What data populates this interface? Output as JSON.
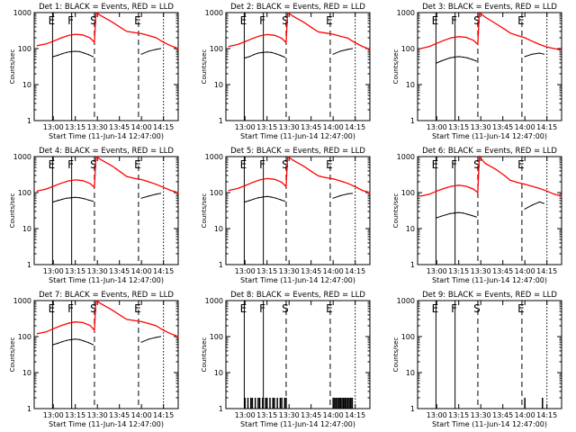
{
  "colors": {
    "events": "#000000",
    "lld": "#ff0000",
    "background": "#ffffff",
    "axis": "#000000"
  },
  "common": {
    "ylabel": "Counts/sec",
    "xlabel": "Start Time (11-Jun-14 12:47:00)",
    "xticks": [
      "13:00",
      "13:15",
      "13:30",
      "13:45",
      "14:00",
      "14:15"
    ],
    "yticks": [
      "1",
      "10",
      "100",
      "1000"
    ],
    "ylim": [
      1,
      1000
    ],
    "y_scale": "log",
    "x_range": [
      "12:47:00",
      "14:25:00"
    ]
  },
  "chart_data": [
    {
      "type": "line",
      "title": "Det 1: BLACK = Events, RED = LLD",
      "markers": [
        {
          "label": "E",
          "time": "12:59:30",
          "style": "solid"
        },
        {
          "label": "F",
          "time": "13:12:30",
          "style": "solid"
        },
        {
          "label": "S",
          "time": "13:28:00",
          "style": "dashed"
        },
        {
          "label": "E",
          "time": "13:58:00",
          "style": "dashed"
        },
        {
          "label": "",
          "time": "14:15:00",
          "style": "dotted"
        }
      ],
      "series": [
        {
          "name": "BLACK = Events",
          "color": "#000000",
          "x": [
            "13:00",
            "13:03",
            "13:06",
            "13:09",
            "13:12",
            "13:15",
            "13:18",
            "13:21",
            "13:24",
            "13:27",
            "13:28",
            "13:31",
            "13:37",
            "13:42",
            "13:48",
            "13:54",
            "13:58",
            "14:00",
            "14:05",
            "14:10",
            "14:13"
          ],
          "y": [
            60,
            65,
            72,
            78,
            82,
            84,
            82,
            75,
            68,
            60,
            null,
            null,
            null,
            null,
            null,
            null,
            null,
            70,
            85,
            95,
            100
          ]
        },
        {
          "name": "RED = LLD",
          "color": "#ff0000",
          "x": [
            "12:49",
            "12:55",
            "13:00",
            "13:05",
            "13:10",
            "13:15",
            "13:20",
            "13:25",
            "13:28",
            "13:29",
            "13:33",
            "13:40",
            "13:46",
            "13:50",
            "13:55",
            "14:00",
            "14:05",
            "14:10",
            "14:15",
            "14:20",
            "14:25"
          ],
          "y": [
            120,
            135,
            160,
            195,
            230,
            250,
            240,
            200,
            150,
            1000,
            800,
            550,
            380,
            300,
            280,
            260,
            230,
            200,
            150,
            120,
            100
          ]
        }
      ]
    },
    {
      "type": "line",
      "title": "Det 2: BLACK = Events, RED = LLD",
      "markers": [
        {
          "label": "E",
          "time": "12:59:30",
          "style": "solid"
        },
        {
          "label": "F",
          "time": "13:12:30",
          "style": "solid"
        },
        {
          "label": "S",
          "time": "13:28:00",
          "style": "dashed"
        },
        {
          "label": "E",
          "time": "13:58:00",
          "style": "dashed"
        },
        {
          "label": "",
          "time": "14:15:00",
          "style": "dotted"
        }
      ],
      "series": [
        {
          "name": "BLACK = Events",
          "color": "#000000",
          "x": [
            "13:00",
            "13:03",
            "13:06",
            "13:09",
            "13:12",
            "13:15",
            "13:18",
            "13:21",
            "13:24",
            "13:27",
            "13:28",
            "14:00",
            "14:05",
            "14:10",
            "14:13"
          ],
          "y": [
            55,
            60,
            68,
            75,
            78,
            80,
            78,
            72,
            65,
            58,
            null,
            70,
            85,
            95,
            100
          ]
        },
        {
          "name": "RED = LLD",
          "color": "#ff0000",
          "x": [
            "12:49",
            "12:55",
            "13:00",
            "13:05",
            "13:10",
            "13:15",
            "13:20",
            "13:25",
            "13:28",
            "13:29",
            "13:33",
            "13:40",
            "13:46",
            "13:50",
            "13:55",
            "14:00",
            "14:05",
            "14:10",
            "14:15",
            "14:20",
            "14:25"
          ],
          "y": [
            115,
            130,
            155,
            190,
            225,
            245,
            235,
            195,
            145,
            1000,
            780,
            540,
            370,
            290,
            270,
            250,
            220,
            195,
            145,
            115,
            95
          ]
        }
      ]
    },
    {
      "type": "line",
      "title": "Det 3: BLACK = Events, RED = LLD",
      "markers": [
        {
          "label": "E",
          "time": "12:59:30",
          "style": "solid"
        },
        {
          "label": "F",
          "time": "13:12:30",
          "style": "solid"
        },
        {
          "label": "S",
          "time": "13:28:00",
          "style": "dashed"
        },
        {
          "label": "E",
          "time": "13:58:00",
          "style": "dashed"
        },
        {
          "label": "",
          "time": "14:15:00",
          "style": "dotted"
        }
      ],
      "series": [
        {
          "name": "BLACK = Events",
          "color": "#000000",
          "x": [
            "13:00",
            "13:03",
            "13:06",
            "13:09",
            "13:12",
            "13:15",
            "13:18",
            "13:21",
            "13:24",
            "13:27",
            "13:28",
            "14:00",
            "14:05",
            "14:10",
            "14:13"
          ],
          "y": [
            40,
            45,
            50,
            55,
            58,
            60,
            58,
            55,
            50,
            45,
            null,
            60,
            70,
            75,
            70
          ]
        },
        {
          "name": "RED = LLD",
          "color": "#ff0000",
          "x": [
            "12:49",
            "12:55",
            "13:00",
            "13:05",
            "13:10",
            "13:15",
            "13:20",
            "13:25",
            "13:28",
            "13:29",
            "13:33",
            "13:40",
            "13:46",
            "13:50",
            "13:55",
            "14:00",
            "14:05",
            "14:10",
            "14:15",
            "14:20",
            "14:25"
          ],
          "y": [
            100,
            115,
            140,
            170,
            200,
            215,
            205,
            170,
            130,
            1000,
            750,
            500,
            350,
            270,
            230,
            200,
            160,
            130,
            110,
            100,
            90
          ]
        }
      ]
    },
    {
      "type": "line",
      "title": "Det 4: BLACK = Events, RED = LLD",
      "markers": [
        {
          "label": "E",
          "time": "12:59:30",
          "style": "solid"
        },
        {
          "label": "F",
          "time": "13:12:30",
          "style": "solid"
        },
        {
          "label": "S",
          "time": "13:28:00",
          "style": "dashed"
        },
        {
          "label": "E",
          "time": "13:58:00",
          "style": "dashed"
        },
        {
          "label": "",
          "time": "14:15:00",
          "style": "dotted"
        }
      ],
      "series": [
        {
          "name": "BLACK = Events",
          "color": "#000000",
          "x": [
            "13:00",
            "13:03",
            "13:06",
            "13:09",
            "13:12",
            "13:15",
            "13:18",
            "13:21",
            "13:24",
            "13:27",
            "13:28",
            "14:00",
            "14:05",
            "14:10",
            "14:13"
          ],
          "y": [
            55,
            60,
            65,
            70,
            72,
            74,
            72,
            68,
            62,
            58,
            null,
            70,
            80,
            90,
            95
          ]
        },
        {
          "name": "RED = LLD",
          "color": "#ff0000",
          "x": [
            "12:49",
            "12:55",
            "13:00",
            "13:05",
            "13:10",
            "13:15",
            "13:20",
            "13:25",
            "13:28",
            "13:29",
            "13:33",
            "13:40",
            "13:46",
            "13:50",
            "13:55",
            "14:00",
            "14:05",
            "14:10",
            "14:15",
            "14:20",
            "14:25"
          ],
          "y": [
            110,
            125,
            150,
            180,
            210,
            225,
            215,
            180,
            140,
            1000,
            800,
            550,
            370,
            280,
            250,
            230,
            200,
            170,
            140,
            115,
            100
          ]
        }
      ]
    },
    {
      "type": "line",
      "title": "Det 5: BLACK = Events, RED = LLD",
      "markers": [
        {
          "label": "E",
          "time": "12:59:30",
          "style": "solid"
        },
        {
          "label": "F",
          "time": "13:12:30",
          "style": "solid"
        },
        {
          "label": "S",
          "time": "13:28:00",
          "style": "dashed"
        },
        {
          "label": "E",
          "time": "13:58:00",
          "style": "dashed"
        },
        {
          "label": "",
          "time": "14:15:00",
          "style": "dotted"
        }
      ],
      "series": [
        {
          "name": "BLACK = Events",
          "color": "#000000",
          "x": [
            "13:00",
            "13:03",
            "13:06",
            "13:09",
            "13:12",
            "13:15",
            "13:18",
            "13:21",
            "13:24",
            "13:27",
            "13:28",
            "14:00",
            "14:05",
            "14:10",
            "14:13"
          ],
          "y": [
            55,
            60,
            66,
            72,
            75,
            78,
            75,
            70,
            64,
            58,
            null,
            70,
            82,
            92,
            95
          ]
        },
        {
          "name": "RED = LLD",
          "color": "#ff0000",
          "x": [
            "12:49",
            "12:55",
            "13:00",
            "13:05",
            "13:10",
            "13:15",
            "13:20",
            "13:25",
            "13:28",
            "13:29",
            "13:33",
            "13:40",
            "13:46",
            "13:50",
            "13:55",
            "14:00",
            "14:05",
            "14:10",
            "14:15",
            "14:20",
            "14:25"
          ],
          "y": [
            115,
            130,
            155,
            190,
            225,
            245,
            235,
            195,
            145,
            1000,
            780,
            540,
            370,
            290,
            260,
            240,
            210,
            180,
            145,
            115,
            100
          ]
        }
      ]
    },
    {
      "type": "line",
      "title": "Det 6: BLACK = Events, RED = LLD",
      "markers": [
        {
          "label": "E",
          "time": "12:59:30",
          "style": "solid"
        },
        {
          "label": "F",
          "time": "13:12:30",
          "style": "solid"
        },
        {
          "label": "S",
          "time": "13:28:00",
          "style": "dashed"
        },
        {
          "label": "E",
          "time": "13:58:00",
          "style": "dashed"
        },
        {
          "label": "",
          "time": "14:15:00",
          "style": "dotted"
        }
      ],
      "series": [
        {
          "name": "BLACK = Events",
          "color": "#000000",
          "x": [
            "13:00",
            "13:03",
            "13:06",
            "13:09",
            "13:12",
            "13:15",
            "13:18",
            "13:21",
            "13:24",
            "13:27",
            "13:28",
            "14:00",
            "14:05",
            "14:10",
            "14:13"
          ],
          "y": [
            20,
            22,
            24,
            26,
            27,
            28,
            27,
            25,
            23,
            21,
            null,
            35,
            45,
            55,
            50
          ]
        },
        {
          "name": "RED = LLD",
          "color": "#ff0000",
          "x": [
            "12:49",
            "12:55",
            "13:00",
            "13:05",
            "13:10",
            "13:15",
            "13:20",
            "13:25",
            "13:28",
            "13:29",
            "13:33",
            "13:40",
            "13:46",
            "13:50",
            "13:55",
            "14:00",
            "14:05",
            "14:10",
            "14:15",
            "14:20",
            "14:25"
          ],
          "y": [
            80,
            90,
            110,
            130,
            150,
            160,
            150,
            125,
            100,
            1000,
            650,
            450,
            300,
            220,
            190,
            170,
            150,
            130,
            110,
            90,
            80
          ]
        }
      ]
    },
    {
      "type": "line",
      "title": "Det 7: BLACK = Events, RED = LLD",
      "markers": [
        {
          "label": "E",
          "time": "12:59:30",
          "style": "solid"
        },
        {
          "label": "F",
          "time": "13:12:30",
          "style": "solid"
        },
        {
          "label": "S",
          "time": "13:28:00",
          "style": "dashed"
        },
        {
          "label": "E",
          "time": "13:58:00",
          "style": "dashed"
        },
        {
          "label": "",
          "time": "14:15:00",
          "style": "dotted"
        }
      ],
      "series": [
        {
          "name": "BLACK = Events",
          "color": "#000000",
          "x": [
            "13:00",
            "13:03",
            "13:06",
            "13:09",
            "13:12",
            "13:15",
            "13:18",
            "13:21",
            "13:24",
            "13:27",
            "13:28",
            "14:00",
            "14:05",
            "14:10",
            "14:13"
          ],
          "y": [
            60,
            65,
            72,
            78,
            82,
            85,
            82,
            75,
            68,
            60,
            null,
            70,
            85,
            95,
            100
          ]
        },
        {
          "name": "RED = LLD",
          "color": "#ff0000",
          "x": [
            "12:49",
            "12:55",
            "13:00",
            "13:05",
            "13:10",
            "13:15",
            "13:20",
            "13:25",
            "13:28",
            "13:29",
            "13:33",
            "13:40",
            "13:46",
            "13:50",
            "13:55",
            "14:00",
            "14:05",
            "14:10",
            "14:15",
            "14:20",
            "14:25"
          ],
          "y": [
            120,
            135,
            165,
            200,
            235,
            255,
            245,
            205,
            150,
            1000,
            800,
            550,
            380,
            300,
            280,
            260,
            230,
            200,
            150,
            120,
            100
          ]
        }
      ]
    },
    {
      "type": "bar",
      "title": "Det 8: BLACK = Events, RED = LLD",
      "markers": [
        {
          "label": "E",
          "time": "12:59:30",
          "style": "solid"
        },
        {
          "label": "F",
          "time": "13:12:30",
          "style": "solid"
        },
        {
          "label": "S",
          "time": "13:28:00",
          "style": "dashed"
        },
        {
          "label": "E",
          "time": "13:58:00",
          "style": "dashed"
        },
        {
          "label": "",
          "time": "14:15:00",
          "style": "dotted"
        }
      ],
      "series": [
        {
          "name": "BLACK = Events",
          "color": "#000000",
          "x": [
            "13:00",
            "13:02",
            "13:04",
            "13:05",
            "13:07",
            "13:09",
            "13:10",
            "13:12",
            "13:14",
            "13:15",
            "13:17",
            "13:19",
            "13:20",
            "13:22",
            "13:24",
            "13:25",
            "13:27",
            "13:28",
            "14:00",
            "14:01",
            "14:02",
            "14:03",
            "14:04",
            "14:05",
            "14:06",
            "14:07",
            "14:08",
            "14:09",
            "14:10",
            "14:11",
            "14:12",
            "14:13"
          ],
          "y": [
            2,
            2,
            2,
            2,
            2,
            2,
            2,
            2,
            2,
            2,
            2,
            2,
            2,
            2,
            2,
            2,
            2,
            2,
            2,
            2,
            2,
            2,
            2,
            2,
            2,
            2,
            2,
            2,
            2,
            2,
            2,
            2
          ]
        }
      ]
    },
    {
      "type": "bar",
      "title": "Det 9: BLACK = Events, RED = LLD",
      "markers": [
        {
          "label": "E",
          "time": "12:59:30",
          "style": "solid"
        },
        {
          "label": "F",
          "time": "13:12:30",
          "style": "solid"
        },
        {
          "label": "S",
          "time": "13:28:00",
          "style": "dashed"
        },
        {
          "label": "E",
          "time": "13:58:00",
          "style": "dashed"
        },
        {
          "label": "",
          "time": "14:15:00",
          "style": "dotted"
        }
      ],
      "series": [
        {
          "name": "BLACK = Events",
          "color": "#000000",
          "x": [
            "14:00",
            "14:12"
          ],
          "y": [
            2,
            2
          ]
        }
      ]
    }
  ]
}
